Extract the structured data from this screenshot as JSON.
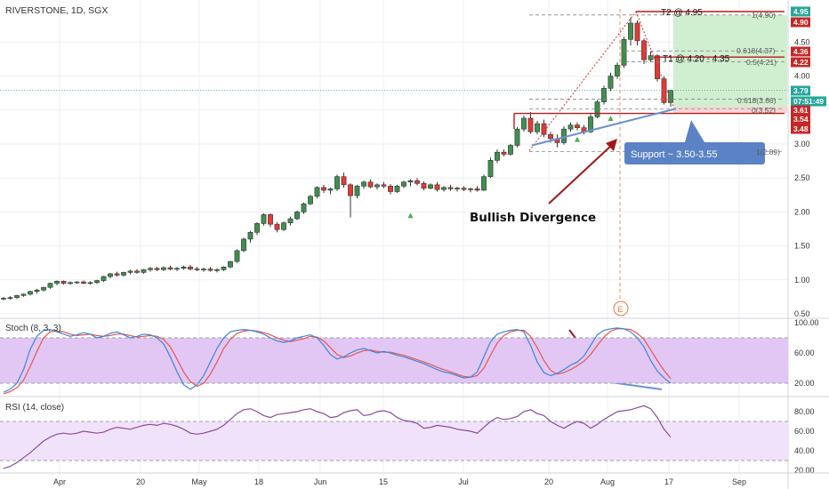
{
  "header": {
    "symbol": "RIVERSTONE, 1D, SGX"
  },
  "colors": {
    "up": "#26a69a",
    "down": "#ef5350",
    "candle_up": "#ffffff",
    "candle_edge": "#3a3a3a",
    "target_zone": "#c8ecc8",
    "stop_zone": "#f6d0d0",
    "stoch_band": "#e2c7f5",
    "rsi_band": "#f1e2fb",
    "k_line": "#3d86d6",
    "d_line": "#e8574c",
    "rsi_line": "#8a4aa0",
    "arrow": "#a01818",
    "trend": "#6a92d0",
    "callout": "#5b82c4",
    "grid": "#eceff4"
  },
  "price_axis": {
    "ticks": [
      "4.50",
      "4.00",
      "3.50",
      "3.00",
      "2.50",
      "2.00",
      "1.50",
      "1.00",
      "0.50"
    ],
    "ylim": [
      0.5,
      5.0
    ]
  },
  "time_axis": {
    "ticks": [
      "Apr",
      "20",
      "May",
      "18",
      "Jun",
      "15",
      "Jul",
      "20",
      "Aug",
      "17",
      "Sep"
    ]
  },
  "price_tags": [
    {
      "label": "4.95",
      "color": "#26a69a"
    },
    {
      "label": "4.90",
      "color": "#c62828"
    },
    {
      "label": "4.36",
      "color": "#c62828"
    },
    {
      "label": "4.22",
      "color": "#c62828"
    },
    {
      "label": "3.79",
      "color": "#26a69a"
    },
    {
      "label": "07:51:49",
      "color": "#26a69a"
    },
    {
      "label": "3.61",
      "color": "#c62828"
    },
    {
      "label": "3.54",
      "color": "#c62828"
    },
    {
      "label": "3.48",
      "color": "#c62828"
    }
  ],
  "annotations": {
    "t2": "T2 @ 4.95",
    "t1": "T1 @ 4.20 - 4.35",
    "support": "Support ~ 3.50-3.55",
    "divergence": "Bullish Divergence",
    "earnings": "E"
  },
  "fib_labels": [
    "1(4.90)",
    "0.618(4.37)",
    "0.5(4.21)",
    "0.618(3.66)",
    "0(3.52)",
    "1(2.89)"
  ],
  "stoch": {
    "title": "Stoch (8, 3, 3)",
    "ticks": [
      "100.00",
      "60.00",
      "20.00"
    ],
    "ylim": [
      0,
      100
    ],
    "bands": [
      20,
      80
    ]
  },
  "rsi": {
    "title": "RSI (14, close)",
    "ticks": [
      "80.00",
      "60.00",
      "40.00",
      "20.00"
    ],
    "ylim": [
      15,
      95
    ],
    "bands": [
      30,
      70
    ]
  },
  "chart_data": {
    "type": "candlestick",
    "title": "RIVERSTONE, 1D, SGX",
    "xlabel": "",
    "ylabel": "",
    "ylim": [
      0.5,
      5.0
    ],
    "grid": true,
    "ohlc": [
      [
        0.72,
        0.75,
        0.7,
        0.73
      ],
      [
        0.73,
        0.76,
        0.71,
        0.74
      ],
      [
        0.74,
        0.78,
        0.72,
        0.77
      ],
      [
        0.77,
        0.8,
        0.75,
        0.79
      ],
      [
        0.79,
        0.84,
        0.77,
        0.83
      ],
      [
        0.83,
        0.87,
        0.8,
        0.85
      ],
      [
        0.85,
        0.9,
        0.83,
        0.89
      ],
      [
        0.89,
        0.96,
        0.87,
        0.95
      ],
      [
        0.95,
        0.99,
        0.92,
        0.98
      ],
      [
        0.98,
        0.99,
        0.93,
        0.95
      ],
      [
        0.95,
        0.98,
        0.93,
        0.96
      ],
      [
        0.96,
        0.98,
        0.94,
        0.97
      ],
      [
        0.97,
        0.99,
        0.94,
        0.95
      ],
      [
        0.95,
        0.98,
        0.93,
        0.96
      ],
      [
        0.96,
        1.0,
        0.94,
        0.99
      ],
      [
        0.99,
        1.06,
        0.97,
        1.05
      ],
      [
        1.05,
        1.1,
        1.02,
        1.09
      ],
      [
        1.09,
        1.12,
        1.05,
        1.07
      ],
      [
        1.07,
        1.12,
        1.05,
        1.11
      ],
      [
        1.11,
        1.15,
        1.08,
        1.13
      ],
      [
        1.13,
        1.16,
        1.09,
        1.11
      ],
      [
        1.11,
        1.16,
        1.09,
        1.15
      ],
      [
        1.15,
        1.19,
        1.12,
        1.17
      ],
      [
        1.17,
        1.19,
        1.13,
        1.15
      ],
      [
        1.15,
        1.2,
        1.13,
        1.18
      ],
      [
        1.18,
        1.21,
        1.14,
        1.16
      ],
      [
        1.16,
        1.19,
        1.13,
        1.17
      ],
      [
        1.17,
        1.21,
        1.15,
        1.19
      ],
      [
        1.19,
        1.22,
        1.14,
        1.16
      ],
      [
        1.16,
        1.19,
        1.13,
        1.15
      ],
      [
        1.15,
        1.18,
        1.12,
        1.16
      ],
      [
        1.16,
        1.19,
        1.12,
        1.14
      ],
      [
        1.14,
        1.17,
        1.11,
        1.15
      ],
      [
        1.15,
        1.2,
        1.13,
        1.19
      ],
      [
        1.19,
        1.28,
        1.17,
        1.27
      ],
      [
        1.27,
        1.45,
        1.25,
        1.43
      ],
      [
        1.43,
        1.62,
        1.41,
        1.6
      ],
      [
        1.6,
        1.72,
        1.55,
        1.7
      ],
      [
        1.7,
        1.85,
        1.66,
        1.83
      ],
      [
        1.83,
        1.98,
        1.8,
        1.96
      ],
      [
        1.96,
        1.98,
        1.78,
        1.82
      ],
      [
        1.82,
        1.85,
        1.7,
        1.74
      ],
      [
        1.74,
        1.86,
        1.72,
        1.84
      ],
      [
        1.84,
        1.93,
        1.8,
        1.9
      ],
      [
        1.9,
        2.02,
        1.88,
        2.0
      ],
      [
        2.0,
        2.14,
        1.97,
        2.12
      ],
      [
        2.12,
        2.25,
        2.1,
        2.23
      ],
      [
        2.23,
        2.38,
        2.2,
        2.36
      ],
      [
        2.36,
        2.4,
        2.28,
        2.32
      ],
      [
        2.32,
        2.36,
        2.26,
        2.34
      ],
      [
        2.34,
        2.55,
        2.31,
        2.52
      ],
      [
        2.52,
        2.58,
        2.36,
        2.4
      ],
      [
        2.4,
        2.42,
        1.92,
        2.24
      ],
      [
        2.24,
        2.4,
        2.2,
        2.38
      ],
      [
        2.38,
        2.46,
        2.34,
        2.44
      ],
      [
        2.44,
        2.48,
        2.35,
        2.37
      ],
      [
        2.37,
        2.42,
        2.33,
        2.4
      ],
      [
        2.4,
        2.44,
        2.35,
        2.38
      ],
      [
        2.38,
        2.41,
        2.26,
        2.3
      ],
      [
        2.3,
        2.4,
        2.28,
        2.38
      ],
      [
        2.38,
        2.46,
        2.35,
        2.44
      ],
      [
        2.44,
        2.48,
        2.38,
        2.46
      ],
      [
        2.46,
        2.5,
        2.39,
        2.42
      ],
      [
        2.42,
        2.45,
        2.32,
        2.35
      ],
      [
        2.35,
        2.42,
        2.33,
        2.4
      ],
      [
        2.4,
        2.44,
        2.3,
        2.33
      ],
      [
        2.33,
        2.38,
        2.3,
        2.36
      ],
      [
        2.36,
        2.4,
        2.31,
        2.34
      ],
      [
        2.34,
        2.37,
        2.3,
        2.35
      ],
      [
        2.35,
        2.38,
        2.31,
        2.33
      ],
      [
        2.33,
        2.36,
        2.29,
        2.34
      ],
      [
        2.34,
        2.38,
        2.3,
        2.32
      ],
      [
        2.32,
        2.55,
        2.31,
        2.52
      ],
      [
        2.52,
        2.8,
        2.5,
        2.76
      ],
      [
        2.76,
        2.92,
        2.72,
        2.88
      ],
      [
        2.88,
        2.92,
        2.82,
        2.85
      ],
      [
        2.85,
        3.0,
        2.83,
        2.98
      ],
      [
        2.98,
        3.25,
        2.95,
        3.22
      ],
      [
        3.22,
        3.42,
        3.18,
        3.38
      ],
      [
        3.38,
        3.47,
        3.15,
        3.18
      ],
      [
        3.18,
        3.34,
        3.14,
        3.3
      ],
      [
        3.3,
        3.36,
        3.1,
        3.14
      ],
      [
        3.14,
        3.18,
        3.02,
        3.08
      ],
      [
        3.08,
        3.14,
        2.95,
        3.02
      ],
      [
        3.02,
        3.26,
        2.99,
        3.22
      ],
      [
        3.22,
        3.32,
        3.18,
        3.28
      ],
      [
        3.28,
        3.32,
        3.2,
        3.24
      ],
      [
        3.24,
        3.28,
        3.14,
        3.18
      ],
      [
        3.18,
        3.44,
        3.16,
        3.4
      ],
      [
        3.4,
        3.65,
        3.38,
        3.62
      ],
      [
        3.62,
        3.86,
        3.58,
        3.82
      ],
      [
        3.82,
        4.05,
        3.78,
        4.0
      ],
      [
        4.0,
        4.2,
        3.96,
        4.16
      ],
      [
        4.16,
        4.58,
        4.12,
        4.54
      ],
      [
        4.54,
        4.86,
        4.45,
        4.78
      ],
      [
        4.78,
        4.82,
        4.45,
        4.52
      ],
      [
        4.52,
        4.55,
        4.18,
        4.24
      ],
      [
        4.24,
        4.36,
        4.2,
        4.3
      ],
      [
        4.3,
        4.32,
        3.92,
        3.96
      ],
      [
        3.96,
        4.0,
        3.58,
        3.61
      ],
      [
        3.61,
        3.8,
        3.55,
        3.79
      ]
    ],
    "fib_levels": [
      {
        "ratio": 1,
        "price": 4.9
      },
      {
        "ratio": 0.618,
        "price": 4.37
      },
      {
        "ratio": 0.5,
        "price": 4.21
      },
      {
        "ratio": 0.618,
        "price": 3.66
      },
      {
        "ratio": 0,
        "price": 3.52
      },
      {
        "ratio": 1,
        "price": 2.89
      }
    ],
    "stoch_k": [
      8,
      12,
      20,
      38,
      65,
      82,
      90,
      91,
      88,
      85,
      82,
      84,
      87,
      85,
      80,
      82,
      86,
      88,
      84,
      80,
      82,
      85,
      84,
      80,
      72,
      55,
      35,
      18,
      12,
      18,
      30,
      48,
      66,
      80,
      88,
      90,
      91,
      90,
      88,
      85,
      80,
      76,
      74,
      76,
      80,
      82,
      84,
      80,
      70,
      58,
      52,
      55,
      60,
      64,
      66,
      63,
      60,
      62,
      60,
      57,
      55,
      52,
      49,
      46,
      42,
      38,
      35,
      33,
      30,
      27,
      28,
      35,
      55,
      75,
      85,
      88,
      90,
      91,
      88,
      70,
      48,
      34,
      30,
      33,
      38,
      44,
      48,
      56,
      70,
      84,
      90,
      92,
      93,
      92,
      88,
      80,
      68,
      50,
      36,
      27,
      20
    ],
    "stoch_d": [
      6,
      9,
      14,
      24,
      42,
      62,
      80,
      88,
      89,
      88,
      85,
      83,
      84,
      85,
      83,
      82,
      83,
      85,
      85,
      83,
      81,
      82,
      83,
      82,
      78,
      68,
      52,
      35,
      22,
      16,
      20,
      32,
      48,
      66,
      78,
      86,
      89,
      90,
      89,
      87,
      84,
      80,
      77,
      75,
      77,
      79,
      82,
      81,
      76,
      67,
      58,
      54,
      56,
      60,
      63,
      64,
      62,
      61,
      61,
      59,
      57,
      54,
      51,
      48,
      45,
      41,
      38,
      35,
      32,
      29,
      28,
      30,
      40,
      57,
      73,
      83,
      88,
      90,
      90,
      82,
      67,
      50,
      37,
      32,
      34,
      38,
      43,
      49,
      58,
      70,
      81,
      89,
      92,
      92,
      91,
      86,
      78,
      64,
      50,
      37,
      26
    ],
    "rsi_values": [
      22,
      24,
      28,
      33,
      38,
      44,
      50,
      54,
      57,
      58,
      57,
      58,
      60,
      59,
      58,
      59,
      62,
      64,
      63,
      62,
      64,
      66,
      67,
      66,
      68,
      67,
      65,
      62,
      58,
      57,
      58,
      60,
      62,
      66,
      72,
      78,
      82,
      83,
      80,
      76,
      74,
      77,
      78,
      79,
      80,
      82,
      83,
      80,
      78,
      74,
      75,
      79,
      81,
      82,
      76,
      77,
      80,
      81,
      79,
      74,
      71,
      70,
      68,
      63,
      64,
      66,
      65,
      64,
      62,
      61,
      60,
      58,
      64,
      70,
      74,
      72,
      73,
      75,
      80,
      82,
      78,
      76,
      70,
      66,
      63,
      67,
      70,
      68,
      63,
      67,
      72,
      76,
      80,
      81,
      82,
      84,
      86,
      83,
      74,
      62,
      54
    ]
  }
}
